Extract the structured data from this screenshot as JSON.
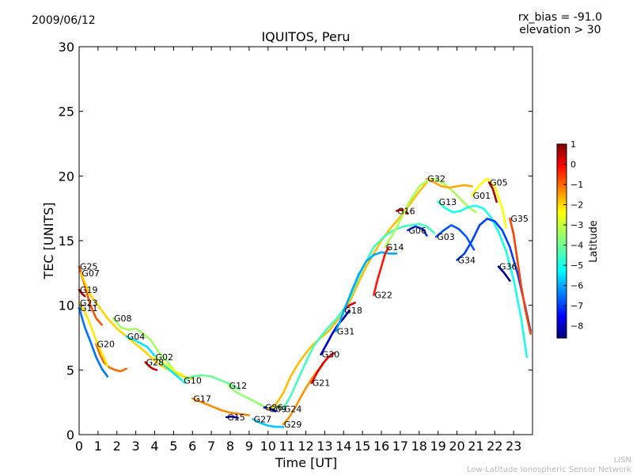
{
  "header": {
    "date": "2009/06/12",
    "rx_bias": "rx_bias = -91.0",
    "elevation": "elevation > 30"
  },
  "footer": {
    "credit_line1": "LISN",
    "credit_line2": "Low-Latitude Ionospheric Sensor Network"
  },
  "chart_data": {
    "type": "line",
    "title": "IQUITOS, Peru",
    "xlabel": "Time [UT]",
    "ylabel": "TEC [UNITS]",
    "xlim": [
      0,
      24
    ],
    "ylim": [
      0,
      30
    ],
    "xticks": [
      "0",
      "1",
      "2",
      "3",
      "4",
      "5",
      "6",
      "7",
      "8",
      "9",
      "10",
      "11",
      "12",
      "13",
      "14",
      "15",
      "16",
      "17",
      "18",
      "19",
      "20",
      "21",
      "22",
      "23"
    ],
    "yticks": [
      "0",
      "5",
      "10",
      "15",
      "20",
      "25",
      "30"
    ],
    "grid": false,
    "colorbar": {
      "label": "Latitude",
      "range": [
        -8.6,
        1.0
      ],
      "ticks": [
        "1",
        "0",
        "−1",
        "−2",
        "−3",
        "−4",
        "−5",
        "−6",
        "−7",
        "−8"
      ],
      "tick_values": [
        1,
        0,
        -1,
        -2,
        -3,
        -4,
        -5,
        -6,
        -7,
        -8
      ],
      "colors": [
        "#00007f",
        "#0000ff",
        "#007fff",
        "#00ffff",
        "#7fff7f",
        "#ffff00",
        "#ff7f00",
        "#ff0000",
        "#7f0000"
      ]
    },
    "series": [
      {
        "name": "G25",
        "lat": -1.0,
        "x": [
          0,
          0.3,
          0.6,
          0.9,
          1.2
        ],
        "y": [
          13.0,
          11.5,
          10.0,
          9.0,
          8.5
        ]
      },
      {
        "name": "G07",
        "lat": -2.2,
        "x": [
          0.1,
          0.5,
          1.0,
          1.5,
          2.0,
          2.5,
          3.0,
          3.5,
          4.0,
          4.5,
          5.0,
          5.5,
          6.0
        ],
        "y": [
          12.5,
          11.0,
          10.0,
          9.0,
          8.2,
          7.6,
          7.0,
          6.4,
          5.7,
          5.2,
          4.8,
          4.5,
          4.3
        ]
      },
      {
        "name": "G08",
        "lat": -3.5,
        "x": [
          1.8,
          2.2,
          2.6,
          3.0,
          3.4,
          3.8,
          4.2,
          4.6,
          5.0
        ],
        "y": [
          9.0,
          8.3,
          8.1,
          8.2,
          7.8,
          7.3,
          6.4,
          5.8,
          5.0
        ]
      },
      {
        "name": "G04",
        "lat": -5.2,
        "x": [
          2.5,
          2.8,
          3.2,
          3.6,
          4.0,
          4.4,
          4.8,
          5.2,
          5.6
        ],
        "y": [
          7.6,
          7.4,
          7.1,
          6.8,
          6.1,
          5.5,
          5.0,
          4.5,
          4.0
        ]
      },
      {
        "name": "G02",
        "lat": -2.8,
        "x": [
          4.0,
          4.3,
          4.6,
          4.9,
          5.2,
          5.5
        ],
        "y": [
          6.0,
          5.7,
          5.4,
          5.1,
          4.8,
          4.6
        ]
      },
      {
        "name": "G28",
        "lat": 0.3,
        "x": [
          3.5,
          3.7,
          3.9,
          4.1
        ],
        "y": [
          5.6,
          5.3,
          5.1,
          5.0
        ]
      },
      {
        "name": "G20",
        "lat": -1.2,
        "x": [
          0.9,
          1.1,
          1.3,
          1.6,
          1.9,
          2.2,
          2.5
        ],
        "y": [
          7.0,
          6.2,
          5.6,
          5.2,
          5.0,
          4.9,
          5.1
        ]
      },
      {
        "name": "G19",
        "lat": 0.5,
        "x": [
          0,
          0.15,
          0.3
        ],
        "y": [
          11.2,
          10.9,
          10.7
        ]
      },
      {
        "name": "G23",
        "lat": -2.4,
        "x": [
          0,
          0.3,
          0.6,
          0.9,
          1.2,
          1.5
        ],
        "y": [
          10.2,
          9.5,
          8.5,
          7.3,
          6.3,
          5.3
        ]
      },
      {
        "name": "G11",
        "lat": -6.3,
        "x": [
          0,
          0.3,
          0.6,
          0.9,
          1.2,
          1.5
        ],
        "y": [
          9.8,
          8.3,
          7.2,
          6.0,
          5.1,
          4.5
        ]
      },
      {
        "name": "G10",
        "lat": -4.0,
        "x": [
          5.5,
          6.0,
          6.5,
          7.0,
          7.5,
          8.0,
          8.5
        ],
        "y": [
          4.2,
          4.5,
          4.6,
          4.5,
          4.2,
          3.9,
          3.5
        ]
      },
      {
        "name": "G17",
        "lat": -1.5,
        "x": [
          6.0,
          6.5,
          7.0,
          7.5,
          8.0,
          8.5,
          9.0
        ],
        "y": [
          2.8,
          2.5,
          2.2,
          1.9,
          1.7,
          1.6,
          1.5
        ]
      },
      {
        "name": "G15",
        "lat": -8.2,
        "x": [
          7.8,
          8.1,
          8.4
        ],
        "y": [
          1.35,
          1.4,
          1.3
        ]
      },
      {
        "name": "G12",
        "lat": -3.6,
        "x": [
          7.9,
          8.3,
          8.7,
          9.1,
          9.5,
          9.9,
          10.3,
          10.7
        ],
        "y": [
          3.8,
          3.3,
          3.0,
          2.7,
          2.4,
          2.1,
          2.0,
          2.3
        ]
      },
      {
        "name": "G26",
        "lat": -7.6,
        "x": [
          9.8,
          10.1,
          10.4
        ],
        "y": [
          2.1,
          2.0,
          1.8
        ]
      },
      {
        "name": "G27",
        "lat": -5.5,
        "x": [
          9.2,
          9.6,
          10.0,
          10.4,
          10.8
        ],
        "y": [
          1.2,
          0.9,
          0.7,
          0.6,
          0.6
        ]
      },
      {
        "name": "G09",
        "lat": -2.0,
        "x": [
          10.0,
          10.4,
          10.8,
          11.2,
          11.6,
          12.0,
          12.4,
          12.8,
          13.2,
          13.6,
          14.0,
          14.4,
          14.8,
          15.2,
          15.6,
          16.0,
          16.4,
          16.8,
          17.2,
          17.6,
          18.0,
          18.4
        ],
        "y": [
          2.0,
          2.3,
          3.2,
          4.5,
          5.5,
          6.3,
          7.0,
          7.5,
          8.0,
          8.7,
          9.5,
          10.5,
          11.8,
          13.0,
          14.0,
          15.0,
          15.8,
          16.5,
          17.2,
          18.0,
          18.8,
          19.5
        ]
      },
      {
        "name": "G29",
        "lat": -1.6,
        "x": [
          10.8,
          11.1,
          11.4,
          11.7,
          12.0,
          12.3,
          12.6,
          12.9
        ],
        "y": [
          0.8,
          1.3,
          2.0,
          2.8,
          3.6,
          4.3,
          4.9,
          5.4
        ]
      },
      {
        "name": "G24",
        "lat": -4.4,
        "x": [
          10.8,
          11.2,
          11.6,
          12.0,
          12.4,
          12.8,
          13.2,
          13.6,
          14.0,
          14.4,
          14.8,
          15.2,
          15.6,
          16.0,
          16.4,
          16.8,
          17.2,
          17.6,
          18.0,
          18.4,
          18.8
        ],
        "y": [
          2.0,
          3.0,
          4.3,
          5.6,
          6.8,
          7.6,
          8.3,
          8.9,
          9.7,
          10.8,
          12.2,
          13.4,
          14.5,
          15.1,
          15.6,
          15.9,
          16.1,
          16.2,
          16.3,
          16.1,
          15.6
        ]
      },
      {
        "name": "G21",
        "lat": 0.0,
        "x": [
          12.3,
          12.6,
          12.9,
          13.2,
          13.5
        ],
        "y": [
          4.0,
          4.8,
          5.5,
          6.0,
          6.3
        ]
      },
      {
        "name": "G30",
        "lat": -7.8,
        "x": [
          12.8,
          13.1,
          13.4,
          13.7,
          14.0,
          14.3
        ],
        "y": [
          6.2,
          7.0,
          7.8,
          8.5,
          9.0,
          9.6
        ]
      },
      {
        "name": "G18",
        "lat": 0.2,
        "x": [
          14.0,
          14.3,
          14.6
        ],
        "y": [
          9.6,
          10.0,
          10.2
        ]
      },
      {
        "name": "G31",
        "lat": -5.8,
        "x": [
          13.6,
          14.0,
          14.4,
          14.8,
          15.2,
          15.6,
          16.0,
          16.4,
          16.8
        ],
        "y": [
          8.0,
          9.5,
          11.0,
          12.4,
          13.4,
          13.9,
          14.1,
          14.0,
          14.0
        ]
      },
      {
        "name": "G22",
        "lat": -0.4,
        "x": [
          15.6,
          15.8,
          16.0,
          16.2,
          16.4
        ],
        "y": [
          10.8,
          12.0,
          13.0,
          14.0,
          14.5
        ]
      },
      {
        "name": "G16",
        "lat": 0.4,
        "x": [
          16.8,
          17.1,
          17.4
        ],
        "y": [
          17.3,
          17.4,
          17.1
        ]
      },
      {
        "name": "G14",
        "lat": -3.4,
        "x": [
          16.2,
          16.8,
          17.4,
          18.0,
          18.6,
          19.0,
          19.4,
          19.8,
          20.2,
          20.6,
          21.0
        ],
        "y": [
          14.5,
          16.0,
          17.8,
          19.2,
          19.8,
          19.7,
          19.3,
          18.8,
          18.2,
          17.6,
          17.2
        ]
      },
      {
        "name": "G06",
        "lat": -7.0,
        "x": [
          17.4,
          17.8,
          18.2,
          18.4
        ],
        "y": [
          15.8,
          16.1,
          15.9,
          15.4
        ]
      },
      {
        "name": "G03",
        "lat": -6.6,
        "x": [
          18.9,
          19.3,
          19.7,
          20.1,
          20.5,
          20.9
        ],
        "y": [
          15.3,
          15.8,
          16.2,
          15.9,
          15.3,
          14.3
        ]
      },
      {
        "name": "G32",
        "lat": -1.8,
        "x": [
          18.4,
          18.8,
          19.2,
          19.6,
          20.0,
          20.4,
          20.8
        ],
        "y": [
          19.8,
          19.5,
          19.2,
          19.1,
          19.2,
          19.3,
          19.2
        ]
      },
      {
        "name": "G13",
        "lat": -4.8,
        "x": [
          19.0,
          19.4,
          19.8,
          20.2,
          20.6,
          21.0,
          21.4,
          21.8,
          22.2,
          22.6,
          23.0,
          23.4,
          23.7
        ],
        "y": [
          18.0,
          17.5,
          17.2,
          17.3,
          17.6,
          17.7,
          17.5,
          16.8,
          15.7,
          14.2,
          12.0,
          9.0,
          6.0
        ]
      },
      {
        "name": "G01",
        "lat": -2.6,
        "x": [
          20.8,
          21.2,
          21.6,
          22.0,
          22.4,
          22.6
        ],
        "y": [
          18.5,
          19.3,
          19.8,
          19.2,
          17.5,
          16.0
        ]
      },
      {
        "name": "G05",
        "lat": 0.6,
        "x": [
          21.7,
          21.9,
          22.1
        ],
        "y": [
          19.5,
          19.0,
          18.0
        ]
      },
      {
        "name": "G34",
        "lat": -6.8,
        "x": [
          20.0,
          20.4,
          20.8,
          21.2,
          21.6,
          22.0,
          22.4,
          22.8,
          23.2,
          23.6,
          23.9
        ],
        "y": [
          13.5,
          14.0,
          15.0,
          16.2,
          16.7,
          16.5,
          15.8,
          14.5,
          12.5,
          10.0,
          8.0
        ]
      },
      {
        "name": "G35",
        "lat": -0.8,
        "x": [
          22.8,
          23.0,
          23.2,
          23.4,
          23.6,
          23.9
        ],
        "y": [
          16.7,
          15.5,
          13.5,
          11.5,
          9.8,
          7.8
        ]
      },
      {
        "name": "G36",
        "lat": -8.4,
        "x": [
          22.2,
          22.5,
          22.8
        ],
        "y": [
          13.0,
          12.5,
          11.9
        ]
      }
    ]
  }
}
